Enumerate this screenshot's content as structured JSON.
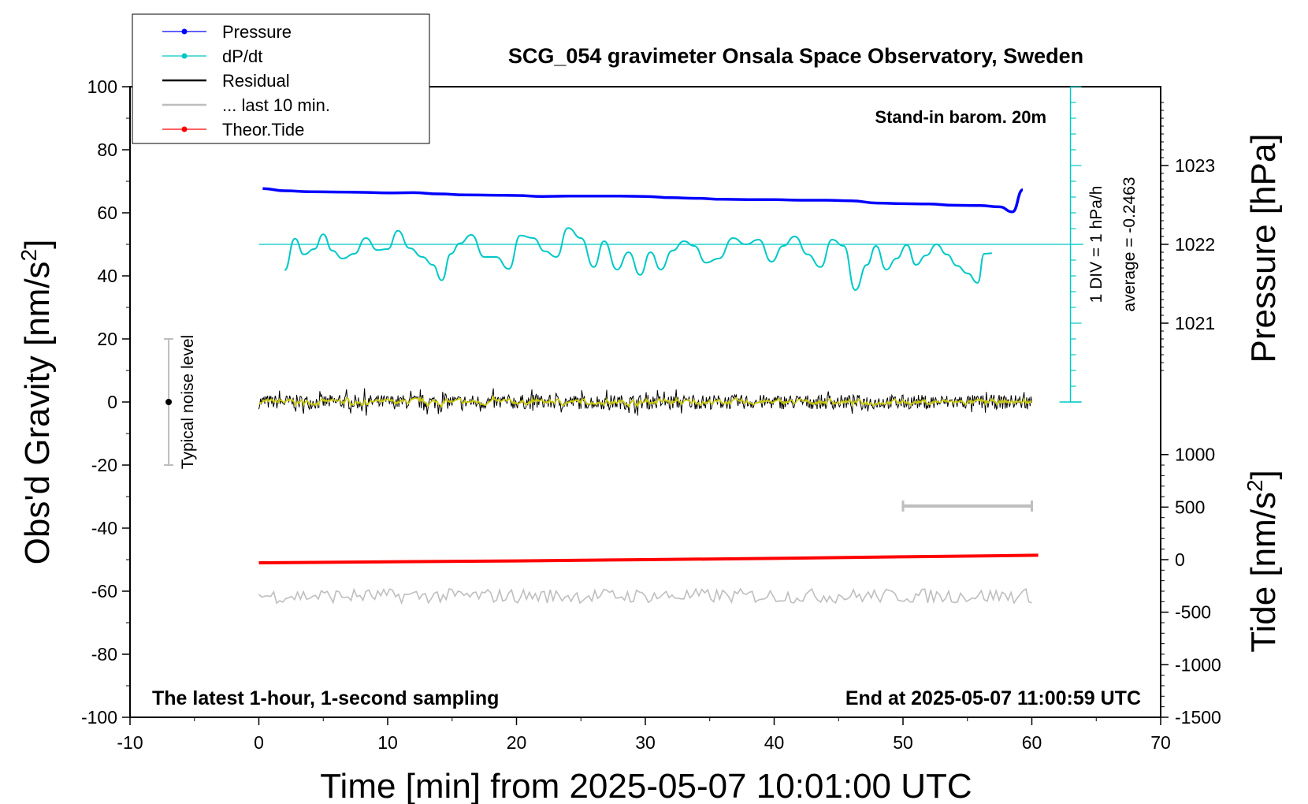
{
  "chart_data": {
    "type": "line",
    "title": "SCG_054 gravimeter Onsala Space Observatory, Sweden",
    "xlabel": "Time [min] from 2025-05-07 10:01:00 UTC",
    "ylabel_left": "Obs'd Gravity [nm/s",
    "ylabel_left_sup": "2",
    "ylabel_left_end": "]",
    "ylabel_right_pressure": "Pressure [hPa]",
    "ylabel_right_tide": "Tide [nm/s",
    "ylabel_right_tide_sup": "2",
    "ylabel_right_tide_end": "]",
    "xlim": [
      -10,
      70
    ],
    "ylim": [
      -100,
      100
    ],
    "x_ticks": [
      "-10",
      "0",
      "10",
      "20",
      "30",
      "40",
      "50",
      "60",
      "70"
    ],
    "y_ticks": [
      "-100",
      "-80",
      "-60",
      "-40",
      "-20",
      "0",
      "20",
      "40",
      "60",
      "80",
      "100"
    ],
    "pressure_ticks": [
      "1023",
      "1022",
      "1021"
    ],
    "pressure_tick_values": [
      1023,
      1022,
      1021
    ],
    "tide_ticks": [
      "1000",
      "500",
      "0",
      "-500",
      "-1000",
      "-1500"
    ],
    "tide_tick_values": [
      1000,
      500,
      0,
      -500,
      -1000,
      -1500
    ],
    "legend": [
      {
        "label": "Pressure",
        "color": "#0000ff",
        "marker": true
      },
      {
        "label": "dP/dt",
        "color": "#00c8c8",
        "marker": true
      },
      {
        "label": "Residual",
        "color": "#000000",
        "marker": false
      },
      {
        "label": "... last 10 min.",
        "color": "#bebebe",
        "marker": false
      },
      {
        "label": "Theor.Tide",
        "color": "#ff0000",
        "marker": true
      }
    ],
    "annotations": {
      "barom": "Stand-in barom. 20m",
      "div": "1 DIV = 1 hPa/h",
      "average": "average = -0.2463",
      "noise": "Typical noise level",
      "bottom_left": "The latest 1-hour, 1-second sampling",
      "bottom_right": "End at 2025-05-07 11:00:59 UTC"
    },
    "series": [
      {
        "name": "Pressure",
        "color": "#0000ff",
        "x": [
          0.3,
          2,
          4,
          6,
          8,
          10,
          12,
          14,
          16,
          18,
          20,
          22,
          24,
          26,
          28,
          30,
          32,
          34,
          36,
          38,
          40,
          42,
          44,
          46,
          48,
          50,
          52,
          54,
          56,
          57.5,
          58.5,
          59.3
        ],
        "y": [
          67.7,
          67.0,
          66.7,
          66.6,
          66.5,
          66.3,
          66.4,
          66.0,
          65.7,
          65.6,
          65.5,
          65.2,
          65.3,
          65.3,
          65.3,
          65.2,
          64.8,
          64.6,
          64.3,
          64.2,
          64.2,
          64.0,
          64.0,
          63.8,
          63.1,
          62.9,
          62.8,
          62.4,
          62.3,
          61.9,
          60.3,
          67.3
        ]
      },
      {
        "name": "dP/dt",
        "color": "#00c8c8",
        "x": [
          2,
          2.8,
          3.5,
          4.3,
          5,
          5.7,
          6.5,
          7.4,
          8.3,
          9.2,
          10,
          10.8,
          11.7,
          12.7,
          13.5,
          14.2,
          14.9,
          15.6,
          16.5,
          17.5,
          18.4,
          19.4,
          20.3,
          21.3,
          22.2,
          23.1,
          24,
          25,
          26,
          26.8,
          27.8,
          28.7,
          29.6,
          30.4,
          31.2,
          32.1,
          33,
          33.8,
          34.7,
          35.7,
          36.8,
          37.8,
          38.8,
          39.8,
          40.7,
          41.6,
          42.6,
          43.6,
          44.5,
          45.4,
          46.3,
          47.2,
          47.9,
          48.7,
          49.5,
          50.3,
          51,
          51.8,
          52.6,
          53.4,
          54.2,
          55,
          55.8,
          56.3,
          56.9
        ],
        "y": [
          41.8,
          51.8,
          46.8,
          48.5,
          53.2,
          48.0,
          45.5,
          47.0,
          52.0,
          48.2,
          48.5,
          54.3,
          48.8,
          46.0,
          43.5,
          38.6,
          47.0,
          50.3,
          53.0,
          46.0,
          46.0,
          42.2,
          52.8,
          52.0,
          47.8,
          46.0,
          55.2,
          52.0,
          42.8,
          51.0,
          42.0,
          47.5,
          40.3,
          47.5,
          42.0,
          48.0,
          51.0,
          49.5,
          44.2,
          45.5,
          52.0,
          50.0,
          51.5,
          44.5,
          49.5,
          52.5,
          46.8,
          42.8,
          51.5,
          49.5,
          35.5,
          43.5,
          49.5,
          42.0,
          45.5,
          49.8,
          43.5,
          46.5,
          50.0,
          46.8,
          43.2,
          40.8,
          37.8,
          47.0,
          47.2
        ]
      },
      {
        "name": "Residual",
        "color": "#000000",
        "x": [
          0,
          60
        ],
        "y": [
          0,
          0
        ],
        "amplitude": 2.3
      },
      {
        "name": "... last 10 min.",
        "color": "#bebebe",
        "x": [
          50,
          60
        ],
        "y": [
          -33,
          -33
        ],
        "note_series": "filtered",
        "filtered_amplitude": 0.8
      },
      {
        "name": "Theor.Tide",
        "color": "#ff0000",
        "x": [
          0,
          10,
          20,
          30,
          40,
          50,
          60.5
        ],
        "y": [
          -51.0,
          -50.7,
          -50.4,
          -50.0,
          -49.6,
          -49.1,
          -48.6
        ]
      },
      {
        "name": "noise-trace",
        "color": "#bebebe",
        "x": [
          0,
          60
        ],
        "y": [
          -61.5,
          -61.5
        ],
        "amplitude": 2.3
      }
    ],
    "noise_bar": {
      "x": -7,
      "y": [
        -20,
        20
      ],
      "center": 0
    },
    "pressure_scale": {
      "x": 63,
      "y_from": 0,
      "y_to": 100,
      "minor_step": 5,
      "baseline_y": 50
    }
  }
}
